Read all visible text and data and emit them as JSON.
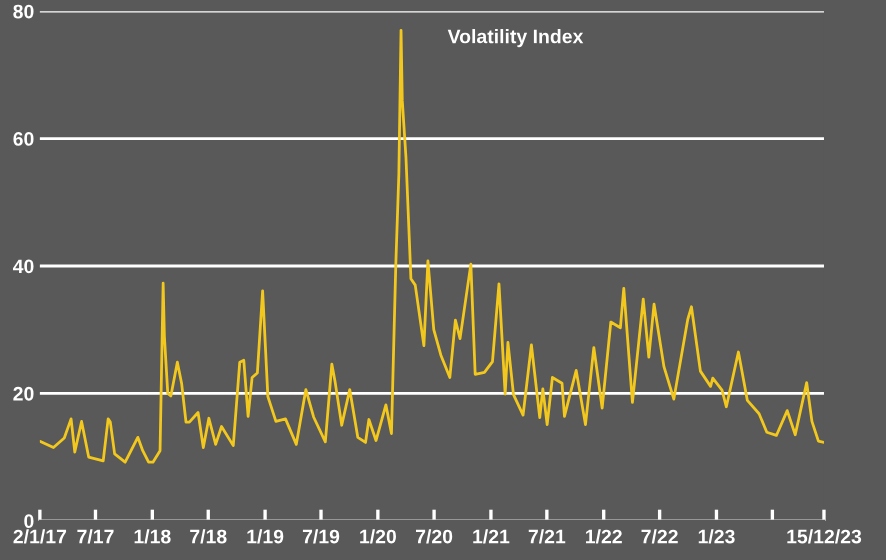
{
  "chart_data": {
    "type": "line",
    "title": "Volatility Index",
    "x": [
      "2017-01-02",
      "2017-02-15",
      "2017-03-22",
      "2017-04-13",
      "2017-04-25",
      "2017-05-17",
      "2017-06-09",
      "2017-07-26",
      "2017-08-11",
      "2017-08-18",
      "2017-09-01",
      "2017-10-05",
      "2017-11-15",
      "2017-12-01",
      "2017-12-20",
      "2018-01-03",
      "2018-01-26",
      "2018-02-05",
      "2018-02-09",
      "2018-02-20",
      "2018-03-02",
      "2018-03-23",
      "2018-04-06",
      "2018-04-20",
      "2018-05-01",
      "2018-05-29",
      "2018-06-15",
      "2018-07-03",
      "2018-07-25",
      "2018-08-13",
      "2018-09-20",
      "2018-10-11",
      "2018-10-24",
      "2018-11-07",
      "2018-11-20",
      "2018-12-07",
      "2018-12-24",
      "2019-01-10",
      "2019-02-05",
      "2019-03-08",
      "2019-04-12",
      "2019-05-13",
      "2019-06-07",
      "2019-07-15",
      "2019-08-05",
      "2019-08-15",
      "2019-09-06",
      "2019-10-02",
      "2019-10-28",
      "2019-11-22",
      "2019-12-03",
      "2019-12-26",
      "2020-01-27",
      "2020-02-14",
      "2020-02-28",
      "2020-03-09",
      "2020-03-16",
      "2020-03-20",
      "2020-04-01",
      "2020-04-17",
      "2020-05-01",
      "2020-05-29",
      "2020-06-11",
      "2020-06-30",
      "2020-07-23",
      "2020-08-21",
      "2020-09-08",
      "2020-09-23",
      "2020-10-28",
      "2020-11-11",
      "2020-12-11",
      "2021-01-06",
      "2021-01-27",
      "2021-02-16",
      "2021-02-25",
      "2021-03-15",
      "2021-04-15",
      "2021-05-12",
      "2021-06-08",
      "2021-06-18",
      "2021-07-02",
      "2021-07-19",
      "2021-08-19",
      "2021-08-27",
      "2021-10-04",
      "2021-11-03",
      "2021-11-30",
      "2021-12-27",
      "2022-01-24",
      "2022-02-24",
      "2022-03-07",
      "2022-04-04",
      "2022-05-09",
      "2022-05-27",
      "2022-06-13",
      "2022-07-15",
      "2022-08-16",
      "2022-09-30",
      "2022-10-12",
      "2022-11-10",
      "2022-12-13",
      "2022-12-20",
      "2023-01-19",
      "2023-02-02",
      "2023-03-13",
      "2023-04-11",
      "2023-05-19",
      "2023-06-13",
      "2023-07-14",
      "2023-08-18",
      "2023-09-13",
      "2023-10-20",
      "2023-11-06",
      "2023-11-27",
      "2023-12-15"
    ],
    "series": [
      {
        "color": "#f2c81e",
        "values": [
          12.5,
          11.5,
          13.0,
          16.0,
          10.8,
          15.6,
          10.0,
          9.4,
          16.0,
          15.5,
          10.5,
          9.2,
          13.1,
          11.0,
          9.2,
          9.2,
          11.0,
          37.3,
          29,
          20,
          19.6,
          24.9,
          21.5,
          15.5,
          15.5,
          17.0,
          11.5,
          16.1,
          12.0,
          14.8,
          11.8,
          24.9,
          25.2,
          16.4,
          22.5,
          23.2,
          36.1,
          19.5,
          15.6,
          16.0,
          12.0,
          20.6,
          16.3,
          12.4,
          24.6,
          22,
          15.0,
          20.6,
          13.1,
          12.3,
          15.9,
          12.6,
          18.2,
          13.7,
          40.1,
          54.5,
          77,
          66,
          57,
          38,
          37,
          27.5,
          40.8,
          30,
          26,
          22.5,
          31.5,
          28.6,
          40.3,
          23,
          23.3,
          25,
          37.2,
          19.9,
          28.0,
          19.8,
          16.6,
          27.6,
          16.2,
          20.7,
          15.1,
          22.5,
          21.6,
          16.4,
          23.6,
          15.1,
          27.2,
          17.7,
          31.2,
          30.3,
          36.5,
          18.6,
          34.8,
          25.7,
          34.0,
          24.2,
          19.1,
          31.6,
          33.6,
          23.5,
          21.1,
          22.4,
          20.5,
          17.9,
          26.5,
          18.9,
          16.8,
          13.9,
          13.4,
          17.3,
          13.5,
          21.7,
          15.6,
          12.5,
          12.3
        ]
      }
    ],
    "xlim": [
      "2017-01-02",
      "2023-12-15"
    ],
    "xticks": [
      {
        "value": "2017-01-02",
        "label": "2/1/17"
      },
      {
        "value": "2017-07-01",
        "label": "7/17"
      },
      {
        "value": "2018-01-01",
        "label": "1/18"
      },
      {
        "value": "2018-07-01",
        "label": "7/18"
      },
      {
        "value": "2019-01-01",
        "label": "1/19"
      },
      {
        "value": "2019-07-01",
        "label": "7/19"
      },
      {
        "value": "2020-01-01",
        "label": "1/20"
      },
      {
        "value": "2020-07-01",
        "label": "7/20"
      },
      {
        "value": "2021-01-01",
        "label": "1/21"
      },
      {
        "value": "2021-07-01",
        "label": "7/21"
      },
      {
        "value": "2022-01-01",
        "label": "1/22"
      },
      {
        "value": "2022-07-01",
        "label": "7/22"
      },
      {
        "value": "2023-01-01",
        "label": "1/23"
      },
      {
        "value": "2023-07-01",
        "label": null
      },
      {
        "value": "2023-12-15",
        "label": "15/12/23"
      }
    ],
    "ylim": [
      0,
      80
    ],
    "yticks": [
      0,
      20,
      40,
      60,
      80
    ],
    "grid": "y",
    "legend": false
  }
}
